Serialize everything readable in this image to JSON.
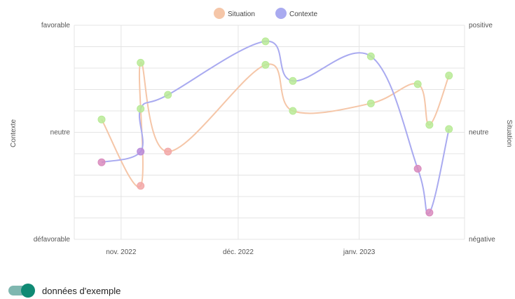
{
  "chart_data": {
    "type": "line",
    "x": [
      "2022-10-27",
      "2022-11-06",
      "2022-11-06",
      "2022-11-13",
      "2022-12-08",
      "2022-12-15",
      "2023-01-04",
      "2023-01-16",
      "2023-01-19",
      "2023-01-24"
    ],
    "series": [
      {
        "name": "Situation",
        "color": "#f5c6a8",
        "values": [
          0.12,
          -0.5,
          0.65,
          -0.18,
          0.63,
          0.2,
          0.27,
          0.45,
          0.07,
          0.53
        ]
      },
      {
        "name": "Contexte",
        "color": "#a9aaf0",
        "values": [
          -0.28,
          -0.18,
          0.22,
          0.35,
          0.85,
          0.48,
          0.71,
          -0.34,
          -0.75,
          0.03
        ]
      }
    ],
    "point_colors": {
      "Situation": [
        "#b8ea96",
        "#f2a7a7",
        "#b8ea96",
        "#f2a7a7",
        "#b8ea96",
        "#b8ea96",
        "#b8ea96",
        "#b8ea96",
        "#b8ea96",
        "#b8ea96"
      ],
      "Contexte": [
        "#d98bbd",
        "#b98bd9",
        "#b8ea96",
        "#b8ea96",
        "#b8ea96",
        "#b8ea96",
        "#b8ea96",
        "#d98bbd",
        "#d98bbd",
        "#b8ea96"
      ]
    },
    "x_ticks": [
      "nov. 2022",
      "déc. 2022",
      "janv. 2023"
    ],
    "y_left_ticks": [
      "favorable",
      "neutre",
      "défavorable"
    ],
    "y_right_ticks": [
      "positive",
      "neutre",
      "négative"
    ],
    "y_left_label": "Contexte",
    "y_right_label": "Situation",
    "ylim": [
      -1,
      1
    ],
    "legend_position": "top-center",
    "grid": true
  },
  "toggle": {
    "label": "données d'exemple",
    "on": true,
    "color": "#0f8a74"
  }
}
